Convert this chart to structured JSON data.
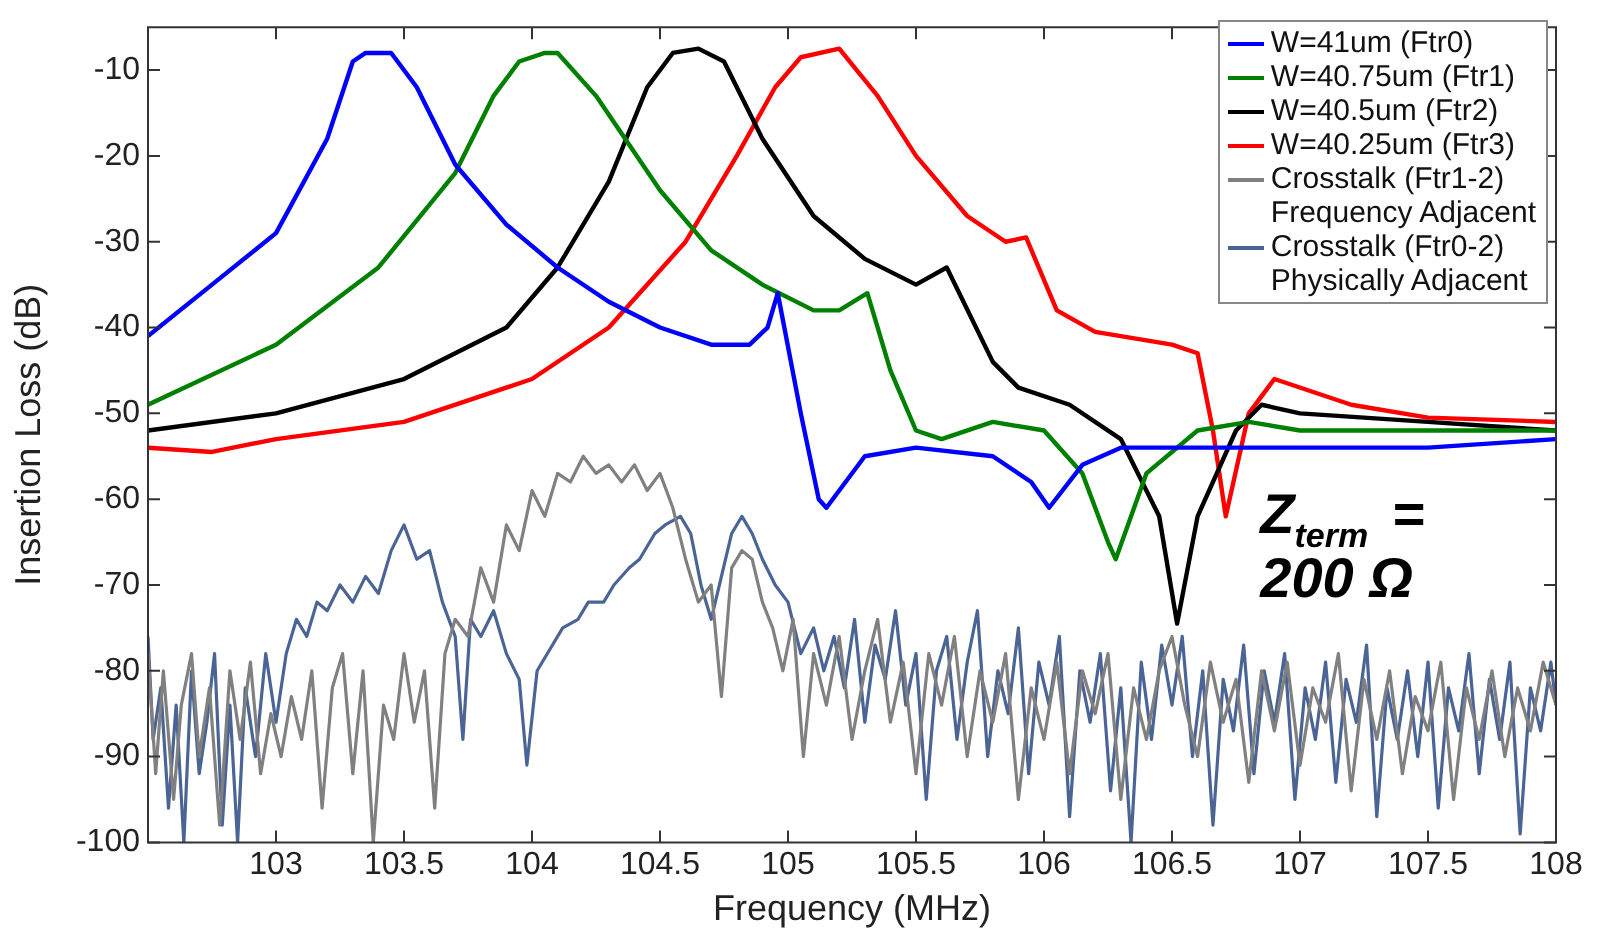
{
  "chart_data": {
    "type": "line",
    "xlabel": "Frequency (MHz)",
    "ylabel": "Insertion Loss (dB)",
    "xlim": [
      102.5,
      108
    ],
    "xticks": [
      103,
      103.5,
      104,
      104.5,
      105,
      105.5,
      106,
      106.5,
      107,
      107.5,
      108
    ],
    "ylim": [
      -100,
      -5
    ],
    "yticks": [
      -100,
      -90,
      -80,
      -70,
      -60,
      -50,
      -40,
      -30,
      -20,
      -10
    ],
    "legend": "top right",
    "marker": "none",
    "line_style": "solid",
    "annotations": [
      "Z$_{term}$ = 200 Ω"
    ],
    "series": [
      {
        "name": "W=41um (Ftr0)",
        "color": "#0000ff",
        "x": [
          102.5,
          102.75,
          103.0,
          103.2,
          103.3,
          103.35,
          103.45,
          103.55,
          103.7,
          103.9,
          104.1,
          104.3,
          104.5,
          104.7,
          104.85,
          104.92,
          104.96,
          105.05,
          105.12,
          105.15,
          105.3,
          105.5,
          105.8,
          105.95,
          106.02,
          106.15,
          106.3,
          106.6,
          107,
          107.5,
          108
        ],
        "values": [
          -41,
          -35,
          -29,
          -18,
          -9,
          -8,
          -8,
          -12,
          -21,
          -28,
          -33,
          -37,
          -40,
          -42,
          -42,
          -40,
          -36,
          -50,
          -60,
          -61,
          -55,
          -54,
          -55,
          -58,
          -61,
          -56,
          -54,
          -54,
          -54,
          -54,
          -53
        ]
      },
      {
        "name": "W=40.75um (Ftr1)",
        "color": "#008000",
        "x": [
          102.5,
          103,
          103.4,
          103.7,
          103.85,
          103.95,
          104.05,
          104.1,
          104.25,
          104.5,
          104.7,
          104.9,
          105.1,
          105.2,
          105.31,
          105.4,
          105.5,
          105.6,
          105.8,
          106.0,
          106.15,
          106.25,
          106.28,
          106.4,
          106.6,
          106.8,
          107,
          107.5,
          108
        ],
        "values": [
          -49,
          -42,
          -33,
          -22,
          -13,
          -9,
          -8,
          -8,
          -13,
          -24,
          -31,
          -35,
          -38,
          -38,
          -36,
          -45,
          -52,
          -53,
          -51,
          -52,
          -57,
          -65,
          -67,
          -57,
          -52,
          -51,
          -52,
          -52,
          -52
        ]
      },
      {
        "name": "W=40.5um (Ftr2)",
        "color": "#000000",
        "x": [
          102.5,
          103,
          103.5,
          103.9,
          104.1,
          104.3,
          104.45,
          104.55,
          104.65,
          104.75,
          104.9,
          105.1,
          105.3,
          105.5,
          105.62,
          105.8,
          105.9,
          106.1,
          106.3,
          106.45,
          106.52,
          106.6,
          106.75,
          106.85,
          107,
          107.5,
          108
        ],
        "values": [
          -52,
          -50,
          -46,
          -40,
          -33,
          -23,
          -12,
          -8,
          -7.5,
          -9,
          -18,
          -27,
          -32,
          -35,
          -33,
          -44,
          -47,
          -49,
          -53,
          -62,
          -74.5,
          -62,
          -52,
          -49,
          -50,
          -51,
          -52
        ]
      },
      {
        "name": "W=40.25um (Ftr3)",
        "color": "#ff0000",
        "x": [
          102.5,
          102.75,
          103,
          103.5,
          104,
          104.3,
          104.6,
          104.8,
          104.95,
          105.05,
          105.2,
          105.35,
          105.5,
          105.7,
          105.85,
          105.93,
          106.05,
          106.2,
          106.5,
          106.6,
          106.66,
          106.71,
          106.8,
          106.9,
          107.2,
          107.5,
          108
        ],
        "values": [
          -54,
          -54.5,
          -53,
          -51,
          -46,
          -40,
          -30,
          -20,
          -12,
          -8.5,
          -7.5,
          -13,
          -20,
          -27,
          -30,
          -29.5,
          -38,
          -40.5,
          -42,
          -43,
          -52,
          -62,
          -50,
          -46,
          -49,
          -50.5,
          -51
        ]
      },
      {
        "name": "Crosstalk (Ftr1-2)\nFrequency Adjacent",
        "color": "#808080",
        "x": [
          102.5,
          102.53,
          102.56,
          102.6,
          102.63,
          102.67,
          102.7,
          102.74,
          102.78,
          102.82,
          102.86,
          102.9,
          102.94,
          102.98,
          103.02,
          103.06,
          103.1,
          103.14,
          103.18,
          103.22,
          103.26,
          103.3,
          103.34,
          103.38,
          103.42,
          103.46,
          103.5,
          103.54,
          103.58,
          103.62,
          103.66,
          103.7,
          103.75,
          103.8,
          103.85,
          103.9,
          103.95,
          104.0,
          104.05,
          104.1,
          104.15,
          104.2,
          104.25,
          104.3,
          104.35,
          104.4,
          104.45,
          104.5,
          104.55,
          104.6,
          104.65,
          104.7,
          104.74,
          104.78,
          104.82,
          104.86,
          104.9,
          104.94,
          104.98,
          105.02,
          105.06,
          105.1,
          105.15,
          105.2,
          105.25,
          105.3,
          105.35,
          105.4,
          105.45,
          105.5,
          105.55,
          105.6,
          105.65,
          105.7,
          105.75,
          105.8,
          105.85,
          105.9,
          105.95,
          106.0,
          106.05,
          106.1,
          106.15,
          106.2,
          106.25,
          106.3,
          106.35,
          106.4,
          106.45,
          106.5,
          106.55,
          106.6,
          106.65,
          106.7,
          106.75,
          106.8,
          106.85,
          106.9,
          106.95,
          107.0,
          107.05,
          107.1,
          107.15,
          107.2,
          107.25,
          107.3,
          107.35,
          107.4,
          107.45,
          107.5,
          107.55,
          107.6,
          107.65,
          107.7,
          107.75,
          107.8,
          107.85,
          107.9,
          107.95,
          108
        ],
        "values": [
          -78,
          -92,
          -80,
          -95,
          -84,
          -78,
          -90,
          -82,
          -98,
          -80,
          -88,
          -79,
          -92,
          -85,
          -90,
          -83,
          -88,
          -80,
          -96,
          -82,
          -78,
          -92,
          -80,
          -100,
          -84,
          -88,
          -78,
          -86,
          -80,
          -96,
          -78,
          -74,
          -76,
          -68,
          -72,
          -63,
          -66,
          -59,
          -62,
          -57,
          -58,
          -55,
          -57,
          -56,
          -58,
          -56,
          -59,
          -57,
          -61,
          -67,
          -72,
          -70,
          -83,
          -68,
          -66,
          -67,
          -72,
          -75,
          -80,
          -74,
          -90,
          -78,
          -84,
          -76,
          -88,
          -80,
          -74,
          -86,
          -79,
          -92,
          -78,
          -84,
          -76,
          -90,
          -80,
          -86,
          -78,
          -95,
          -82,
          -88,
          -79,
          -92,
          -80,
          -85,
          -78,
          -95,
          -82,
          -88,
          -80,
          -76,
          -84,
          -90,
          -79,
          -86,
          -81,
          -93,
          -80,
          -87,
          -79,
          -91,
          -82,
          -86,
          -78,
          -94,
          -81,
          -88,
          -80,
          -92,
          -83,
          -87,
          -79,
          -95,
          -82,
          -88,
          -80,
          -90,
          -82,
          -87,
          -79,
          -84
        ]
      },
      {
        "name": "Crosstalk (Ftr0-2)\nPhysically Adjacent",
        "color": "#4a6496",
        "x": [
          102.5,
          102.52,
          102.55,
          102.58,
          102.61,
          102.64,
          102.67,
          102.7,
          102.73,
          102.76,
          102.79,
          102.82,
          102.85,
          102.88,
          102.92,
          102.96,
          103.0,
          103.04,
          103.08,
          103.12,
          103.16,
          103.2,
          103.25,
          103.3,
          103.35,
          103.4,
          103.45,
          103.5,
          103.55,
          103.6,
          103.65,
          103.7,
          103.73,
          103.76,
          103.8,
          103.85,
          103.9,
          103.95,
          103.98,
          104.02,
          104.08,
          104.12,
          104.18,
          104.22,
          104.28,
          104.32,
          104.38,
          104.42,
          104.48,
          104.52,
          104.58,
          104.62,
          104.66,
          104.7,
          104.74,
          104.78,
          104.82,
          104.86,
          104.9,
          104.95,
          105.0,
          105.05,
          105.1,
          105.14,
          105.18,
          105.22,
          105.26,
          105.3,
          105.34,
          105.38,
          105.42,
          105.46,
          105.5,
          105.54,
          105.58,
          105.62,
          105.66,
          105.7,
          105.74,
          105.78,
          105.82,
          105.86,
          105.9,
          105.94,
          105.98,
          106.02,
          106.06,
          106.1,
          106.14,
          106.18,
          106.22,
          106.26,
          106.3,
          106.34,
          106.38,
          106.42,
          106.46,
          106.5,
          106.54,
          106.58,
          106.62,
          106.66,
          106.7,
          106.74,
          106.78,
          106.82,
          106.86,
          106.9,
          106.94,
          106.98,
          107.02,
          107.06,
          107.1,
          107.14,
          107.18,
          107.22,
          107.26,
          107.3,
          107.34,
          107.38,
          107.42,
          107.46,
          107.5,
          107.54,
          107.58,
          107.62,
          107.66,
          107.7,
          107.74,
          107.78,
          107.82,
          107.86,
          107.9,
          107.94,
          107.98,
          108
        ],
        "values": [
          -76,
          -88,
          -82,
          -96,
          -84,
          -100,
          -80,
          -92,
          -86,
          -78,
          -98,
          -84,
          -100,
          -82,
          -90,
          -78,
          -86,
          -78,
          -74,
          -76,
          -72,
          -73,
          -70,
          -72,
          -69,
          -71,
          -66,
          -63,
          -67,
          -66,
          -72,
          -76,
          -88,
          -74,
          -76,
          -73,
          -78,
          -81,
          -91,
          -80,
          -77,
          -75,
          -74,
          -72,
          -72,
          -70,
          -68,
          -67,
          -64,
          -63,
          -62,
          -64,
          -70,
          -74,
          -69,
          -64,
          -62,
          -64,
          -67,
          -70,
          -72,
          -78,
          -75,
          -80,
          -76,
          -82,
          -74,
          -86,
          -77,
          -81,
          -73,
          -84,
          -78,
          -95,
          -80,
          -76,
          -88,
          -79,
          -73,
          -90,
          -80,
          -85,
          -75,
          -92,
          -79,
          -84,
          -76,
          -97,
          -80,
          -86,
          -78,
          -94,
          -82,
          -100,
          -79,
          -88,
          -77,
          -84,
          -76,
          -90,
          -80,
          -98,
          -81,
          -87,
          -77,
          -92,
          -80,
          -86,
          -78,
          -95,
          -82,
          -88,
          -79,
          -93,
          -81,
          -86,
          -77,
          -97,
          -82,
          -88,
          -80,
          -90,
          -79,
          -96,
          -82,
          -87,
          -78,
          -92,
          -81,
          -88,
          -79,
          -99,
          -82,
          -87,
          -79,
          -84
        ]
      }
    ]
  }
}
